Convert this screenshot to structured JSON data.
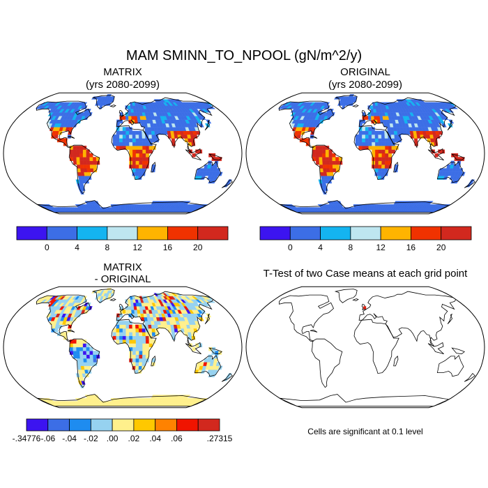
{
  "chart_data": {
    "title": "MAM SMINN_TO_NPOOL (gN/m^2/y)",
    "panels": [
      {
        "id": "matrix",
        "type": "heatmap",
        "title_line1": "MATRIX",
        "title_line2": "(yrs 2080-2099)",
        "projection": "robinson"
      },
      {
        "id": "original",
        "type": "heatmap",
        "title_line1": "ORIGINAL",
        "title_line2": "(yrs 2080-2099)",
        "projection": "robinson"
      },
      {
        "id": "difference",
        "type": "heatmap",
        "title_line1": "MATRIX",
        "title_line2": "- ORIGINAL",
        "projection": "robinson"
      },
      {
        "id": "ttest",
        "type": "heatmap",
        "title_line1": "T-Test of two Case means at each grid point",
        "title_line2": "",
        "projection": "robinson",
        "note": "Cells are significant at 0.1 level"
      }
    ],
    "colorbar_main": {
      "colors": [
        "#3c14f0",
        "#3c6ee6",
        "#14b4f0",
        "#bee6f0",
        "#ffb400",
        "#f03200",
        "#d2281e"
      ],
      "labels": [
        "0",
        "4",
        "8",
        "12",
        "16",
        "20"
      ]
    },
    "colorbar_diff": {
      "colors": [
        "#3c14f0",
        "#3c6ee6",
        "#1e8cf0",
        "#96d2f0",
        "#fff08c",
        "#ffc800",
        "#ff8200",
        "#f01400",
        "#d2281e"
      ],
      "labels": [
        "-.34776",
        "-.06",
        "-.04",
        "-.02",
        ".00",
        ".02",
        ".04",
        ".06",
        ".27315"
      ]
    }
  }
}
